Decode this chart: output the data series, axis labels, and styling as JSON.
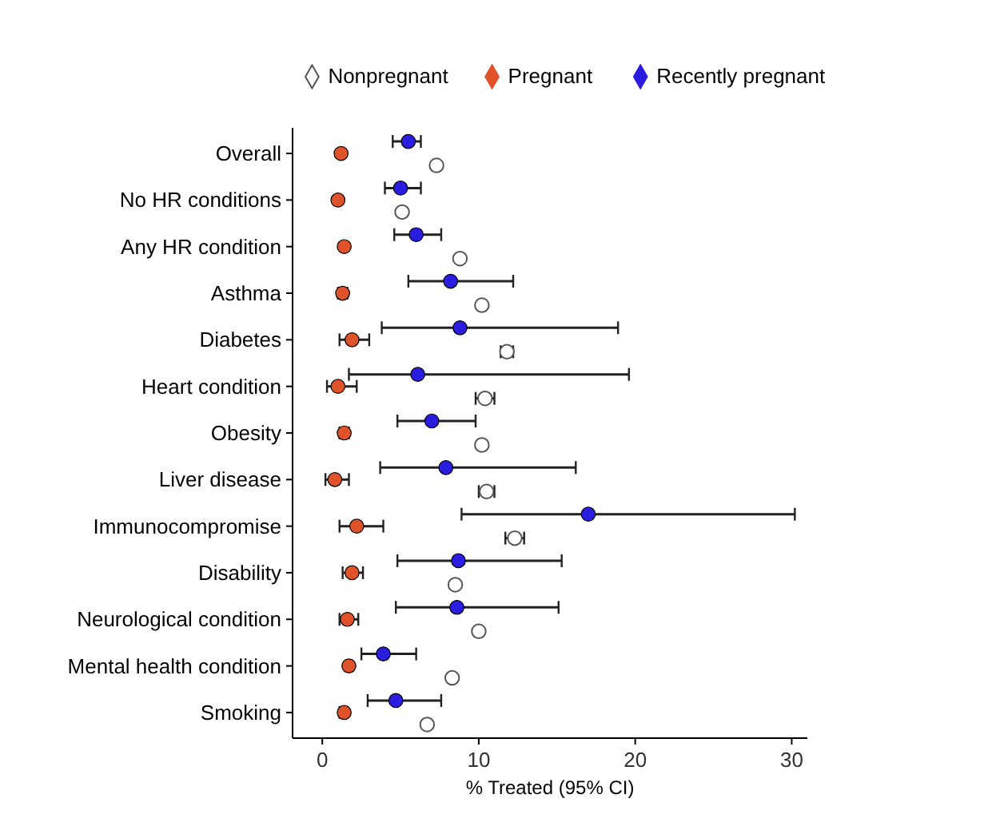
{
  "chart_data": {
    "type": "scatter",
    "orientation": "horizontal",
    "xlabel": "% Treated (95% CI)",
    "categories": [
      "Overall",
      "No HR conditions",
      "Any HR condition",
      "Asthma",
      "Diabetes",
      "Heart condition",
      "Obesity",
      "Liver disease",
      "Immunocompromise",
      "Disability",
      "Neurological condition",
      "Mental health condition",
      "Smoking"
    ],
    "series": [
      {
        "name": "Nonpregnant",
        "color": "#ffffff",
        "values": [
          7.3,
          5.1,
          8.8,
          10.2,
          11.8,
          10.4,
          10.2,
          10.5,
          12.3,
          8.5,
          10.0,
          8.3,
          6.7
        ],
        "errors": [
          null,
          null,
          null,
          [
            10.0,
            10.4
          ],
          [
            11.4,
            12.2
          ],
          [
            9.8,
            11.0
          ],
          [
            10.0,
            10.4
          ],
          [
            10.0,
            11.0
          ],
          [
            11.7,
            12.9
          ],
          [
            8.3,
            8.7
          ],
          [
            9.8,
            10.2
          ],
          null,
          [
            6.5,
            6.9
          ]
        ]
      },
      {
        "name": "Pregnant",
        "color": "#e0522a",
        "values": [
          1.2,
          1.0,
          1.4,
          1.3,
          1.9,
          1.0,
          1.4,
          0.8,
          2.2,
          1.9,
          1.6,
          1.7,
          1.4
        ],
        "errors": [
          null,
          null,
          null,
          [
            1.0,
            1.6
          ],
          [
            1.1,
            3.0
          ],
          [
            0.3,
            2.2
          ],
          [
            1.1,
            1.7
          ],
          [
            0.2,
            1.7
          ],
          [
            1.1,
            3.9
          ],
          [
            1.3,
            2.6
          ],
          [
            1.1,
            2.3
          ],
          [
            1.5,
            1.9
          ],
          [
            1.1,
            1.6
          ]
        ]
      },
      {
        "name": "Recently pregnant",
        "color": "#2b1de0",
        "values": [
          5.5,
          5.0,
          6.0,
          8.2,
          8.8,
          6.1,
          7.0,
          7.9,
          17.0,
          8.7,
          8.6,
          3.9,
          4.7
        ],
        "errors": [
          [
            4.5,
            6.3
          ],
          [
            4.0,
            6.3
          ],
          [
            4.6,
            7.6
          ],
          [
            5.5,
            12.2
          ],
          [
            3.8,
            18.9
          ],
          [
            1.7,
            19.6
          ],
          [
            4.8,
            9.8
          ],
          [
            3.7,
            16.2
          ],
          [
            8.9,
            30.2
          ],
          [
            4.8,
            15.3
          ],
          [
            4.7,
            15.1
          ],
          [
            2.5,
            6.0
          ],
          [
            2.9,
            7.6
          ]
        ]
      }
    ],
    "xlim": [
      -1.9,
      31
    ],
    "xticks": [
      0,
      10,
      20,
      30
    ],
    "grid": false,
    "legend": "top",
    "marker": "circle"
  }
}
